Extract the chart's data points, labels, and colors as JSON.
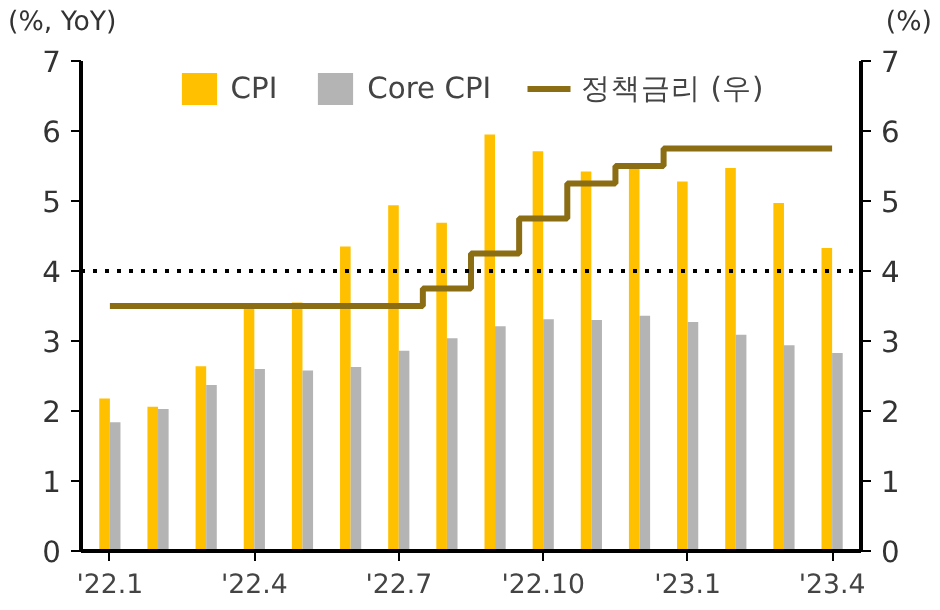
{
  "chart_data": {
    "type": "bar",
    "xlabel": null,
    "ylabel": "(%, YoY)",
    "y2label": "(%)",
    "categories": [
      "'22.1",
      null,
      null,
      "'22.4",
      null,
      null,
      "'22.7",
      null,
      null,
      "'22.10",
      null,
      null,
      "'23.1",
      null,
      null,
      "'23.4"
    ],
    "series": [
      {
        "name": "CPI",
        "color": "#ffc000",
        "values": [
          2.18,
          2.06,
          2.64,
          3.47,
          3.55,
          4.35,
          4.94,
          4.69,
          5.95,
          5.71,
          5.42,
          5.51,
          5.28,
          5.47,
          4.97,
          4.33
        ]
      },
      {
        "name": "Core CPI",
        "color": "#b4b4b4",
        "values": [
          1.84,
          2.03,
          2.37,
          2.6,
          2.58,
          2.63,
          2.86,
          3.04,
          3.21,
          3.31,
          3.3,
          3.36,
          3.27,
          3.09,
          2.94,
          2.83
        ]
      },
      {
        "name": "정책금리 (우)",
        "type": "step",
        "axis": "y2",
        "color": "#8b6d14",
        "values": [
          3.5,
          3.5,
          3.5,
          3.5,
          3.5,
          3.5,
          3.5,
          3.75,
          4.25,
          4.75,
          5.25,
          5.5,
          5.75,
          5.75,
          5.75,
          5.75
        ]
      }
    ],
    "ylim": [
      0,
      7
    ],
    "yticks": [
      0,
      1,
      2,
      3,
      4,
      5,
      6,
      7
    ],
    "y2lim": [
      0,
      7
    ],
    "y2ticks": [
      0,
      1,
      2,
      3,
      4,
      5,
      6,
      7
    ],
    "ref_lines": [
      {
        "axis": "y",
        "value": 4,
        "color": "#000000",
        "line_style": "dotted"
      }
    ],
    "grid": false,
    "legend": "top"
  }
}
